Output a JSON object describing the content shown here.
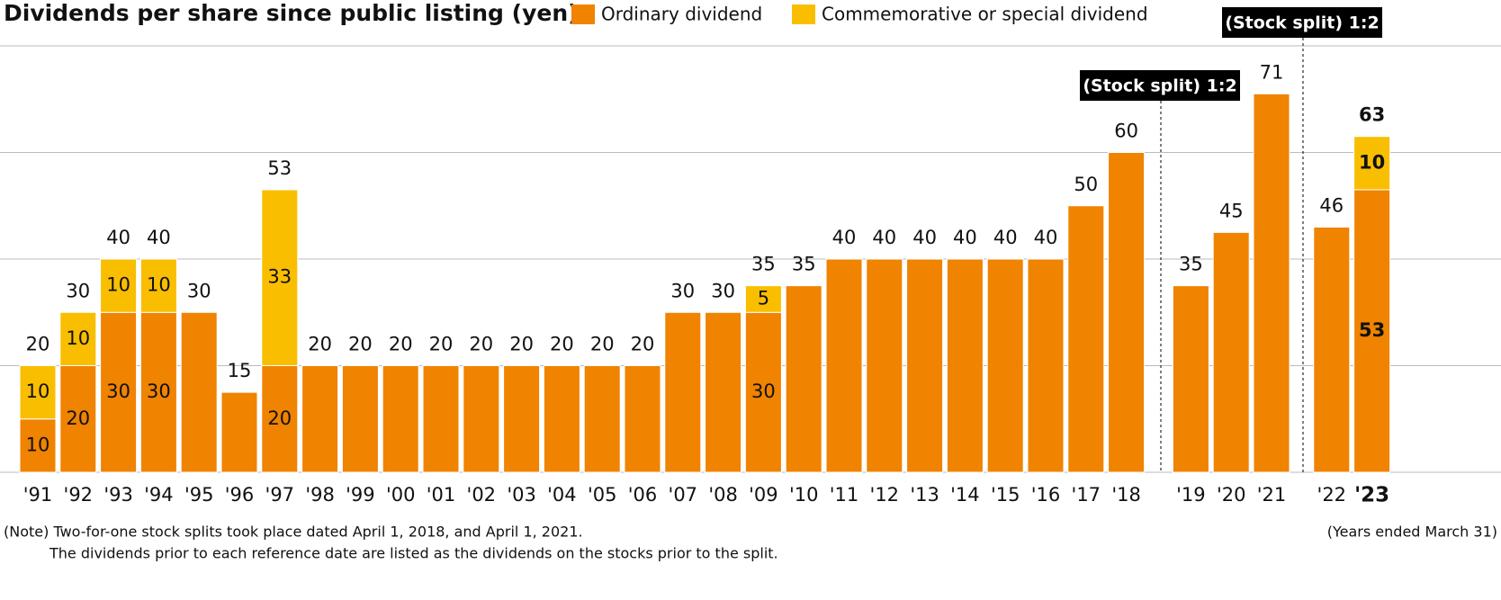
{
  "chart_data": {
    "type": "stacked-bar",
    "title": "Dividends per share since public listing (yen)",
    "categories": [
      "'91",
      "'92",
      "'93",
      "'94",
      "'95",
      "'96",
      "'97",
      "'98",
      "'99",
      "'00",
      "'01",
      "'02",
      "'03",
      "'04",
      "'05",
      "'06",
      "'07",
      "'08",
      "'09",
      "'10",
      "'11",
      "'12",
      "'13",
      "'14",
      "'15",
      "'16",
      "'17",
      "'18",
      "'19",
      "'20",
      "'21",
      "'22",
      "'23"
    ],
    "series": [
      {
        "name": "Ordinary dividend",
        "color": "#f08300",
        "values": [
          10,
          20,
          30,
          30,
          30,
          15,
          20,
          20,
          20,
          20,
          20,
          20,
          20,
          20,
          20,
          20,
          30,
          30,
          30,
          35,
          40,
          40,
          40,
          40,
          40,
          40,
          50,
          60,
          35,
          45,
          71,
          46,
          53
        ]
      },
      {
        "name": "Commemorative or special dividend",
        "color": "#f9be00",
        "values": [
          10,
          10,
          10,
          10,
          null,
          null,
          33,
          null,
          null,
          null,
          null,
          null,
          null,
          null,
          null,
          null,
          null,
          null,
          5,
          null,
          null,
          null,
          null,
          null,
          null,
          null,
          null,
          null,
          null,
          null,
          null,
          null,
          10
        ]
      }
    ],
    "totals": [
      20,
      30,
      40,
      40,
      30,
      15,
      53,
      20,
      20,
      20,
      20,
      20,
      20,
      20,
      20,
      20,
      30,
      30,
      35,
      35,
      40,
      40,
      40,
      40,
      40,
      40,
      50,
      60,
      35,
      45,
      71,
      46,
      63
    ],
    "ylim": [
      0,
      80
    ],
    "yticks": [
      0,
      20,
      40,
      60,
      80
    ],
    "grid": true,
    "annotations": [
      "(Stock split) 1:2",
      "(Stock split) 1:2"
    ],
    "notes": [
      "(Note) Two-for-one stock splits took place dated April 1, 2018, and April 1, 2021.",
      "The dividends prior to each reference date are listed as the dividends on the stocks prior to the split."
    ],
    "period_note": "(Years ended March 31)"
  }
}
